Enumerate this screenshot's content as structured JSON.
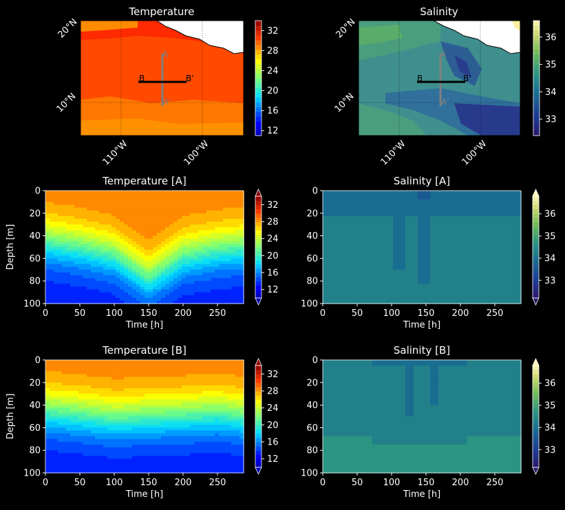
{
  "figure": {
    "panels": [
      {
        "id": "map_temp",
        "title": "Temperature",
        "type": "map",
        "variable": "temperature"
      },
      {
        "id": "map_sal",
        "title": "Salinity",
        "type": "map",
        "variable": "salinity"
      },
      {
        "id": "sec_temp_a",
        "title": "Temperature [A]",
        "type": "section",
        "variable": "temperature",
        "section": "A"
      },
      {
        "id": "sec_sal_a",
        "title": "Salinity [A]",
        "type": "section",
        "variable": "salinity",
        "section": "A"
      },
      {
        "id": "sec_temp_b",
        "title": "Temperature [B]",
        "type": "section",
        "variable": "temperature",
        "section": "B"
      },
      {
        "id": "sec_sal_b",
        "title": "Salinity [B]",
        "type": "section",
        "variable": "salinity",
        "section": "B"
      }
    ],
    "map_labels": {
      "lat_ticks": [
        "20°N",
        "10°N"
      ],
      "lon_ticks": [
        "110°W",
        "100°W"
      ],
      "section_a_start": "A",
      "section_a_end": "A'",
      "section_b_start": "B",
      "section_b_end": "B'"
    },
    "colors": {
      "background": "#000000",
      "section_a_line": "#808080",
      "section_b_line": "#000000",
      "land": "#ffffff"
    }
  },
  "chart_data": [
    {
      "type": "heatmap",
      "panel": "map_temp",
      "title": "Temperature",
      "xlabel": "",
      "ylabel": "",
      "x_ticks": [
        "110°W",
        "100°W"
      ],
      "y_ticks": [
        "20°N",
        "10°N"
      ],
      "colormap": "jet",
      "colorbar": {
        "ticks": [
          12,
          16,
          20,
          24,
          28,
          32
        ],
        "range": [
          11,
          34
        ],
        "extend": "neither"
      },
      "values_typical": {
        "north_band": 31,
        "interior": 29,
        "south": 28
      }
    },
    {
      "type": "heatmap",
      "panel": "map_sal",
      "title": "Salinity",
      "xlabel": "",
      "ylabel": "",
      "x_ticks": [
        "110°W",
        "100°W"
      ],
      "y_ticks": [
        "20°N",
        "10°N"
      ],
      "colormap": "haline",
      "colorbar": {
        "ticks": [
          33,
          34,
          35,
          36
        ],
        "range": [
          32.4,
          36.6
        ],
        "extend": "neither"
      },
      "values_typical": {
        "west": 34.4,
        "center": 34.0,
        "east_low": 33.2
      }
    },
    {
      "type": "heatmap",
      "panel": "sec_temp_a",
      "title": "Temperature [A]",
      "xlabel": "Time [h]",
      "ylabel": "Depth [m]",
      "x_ticks": [
        0,
        50,
        100,
        150,
        200,
        250
      ],
      "y_ticks": [
        0,
        20,
        40,
        60,
        80,
        100
      ],
      "xlim": [
        0,
        288
      ],
      "ylim": [
        100,
        0
      ],
      "colormap": "jet",
      "colorbar": {
        "ticks": [
          12,
          16,
          20,
          24,
          28,
          32
        ],
        "range": [
          10,
          34
        ],
        "extend": "both"
      },
      "surface_temp": 29,
      "bottom_temp": 13,
      "thermocline_depth_h": {
        "t": [
          0,
          50,
          100,
          150,
          200,
          250,
          288
        ],
        "depth": [
          45,
          50,
          57,
          78,
          58,
          52,
          50
        ]
      }
    },
    {
      "type": "heatmap",
      "panel": "sec_sal_a",
      "title": "Salinity [A]",
      "xlabel": "Time [h]",
      "ylabel": "",
      "x_ticks": [
        0,
        50,
        100,
        150,
        200,
        250
      ],
      "y_ticks": [
        0,
        20,
        40,
        60,
        80,
        100
      ],
      "xlim": [
        0,
        288
      ],
      "ylim": [
        100,
        0
      ],
      "colormap": "haline",
      "colorbar": {
        "ticks": [
          33,
          34,
          35,
          36
        ],
        "range": [
          32.2,
          36.8
        ],
        "extend": "both"
      },
      "surface_sal": 34.0,
      "bottom_sal": 34.5
    },
    {
      "type": "heatmap",
      "panel": "sec_temp_b",
      "title": "Temperature [B]",
      "xlabel": "Time [h]",
      "ylabel": "Depth [m]",
      "x_ticks": [
        0,
        50,
        100,
        150,
        200,
        250
      ],
      "y_ticks": [
        0,
        20,
        40,
        60,
        80,
        100
      ],
      "xlim": [
        0,
        288
      ],
      "ylim": [
        100,
        0
      ],
      "colormap": "jet",
      "colorbar": {
        "ticks": [
          12,
          16,
          20,
          24,
          28,
          32
        ],
        "range": [
          10,
          34
        ],
        "extend": "both"
      },
      "surface_temp": 29,
      "bottom_temp": 13,
      "thermocline_depth_h": {
        "t": [
          0,
          50,
          100,
          150,
          200,
          250,
          288
        ],
        "depth": [
          45,
          48,
          52,
          50,
          49,
          47,
          50
        ]
      }
    },
    {
      "type": "heatmap",
      "panel": "sec_sal_b",
      "title": "Salinity [B]",
      "xlabel": "Time [h]",
      "ylabel": "",
      "x_ticks": [
        0,
        50,
        100,
        150,
        200,
        250
      ],
      "y_ticks": [
        0,
        20,
        40,
        60,
        80,
        100
      ],
      "xlim": [
        0,
        288
      ],
      "ylim": [
        100,
        0
      ],
      "colormap": "haline",
      "colorbar": {
        "ticks": [
          33,
          34,
          35,
          36
        ],
        "range": [
          32.2,
          36.8
        ],
        "extend": "both"
      },
      "surface_sal": 34.3,
      "bottom_sal": 34.6
    }
  ]
}
